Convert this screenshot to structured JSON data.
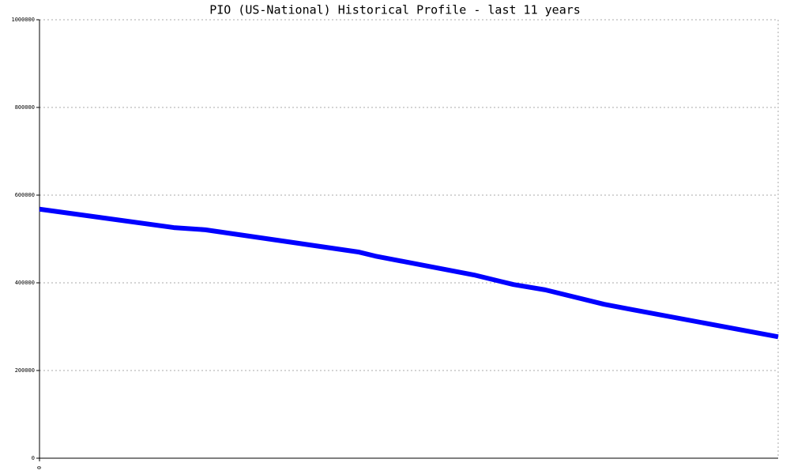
{
  "chart_data": {
    "type": "line",
    "title": "PIO (US-National) Historical Profile - last 11 years",
    "x": [
      0,
      2.0,
      2.47,
      4.76,
      5.0,
      5.41,
      6.47,
      7.06,
      7.53,
      8.41,
      8.82,
      11
    ],
    "series": [
      {
        "color": "#0000ff",
        "values": [
          568000,
          526000,
          521000,
          470000,
          461000,
          449000,
          418000,
          396000,
          384000,
          351000,
          339000,
          277000
        ]
      }
    ],
    "xlim": [
      0,
      11
    ],
    "xticks": [
      0
    ],
    "ylim": [
      0,
      1000000
    ],
    "yticks": [
      0,
      200000,
      400000,
      600000,
      800000,
      1000000
    ],
    "grid": true
  }
}
